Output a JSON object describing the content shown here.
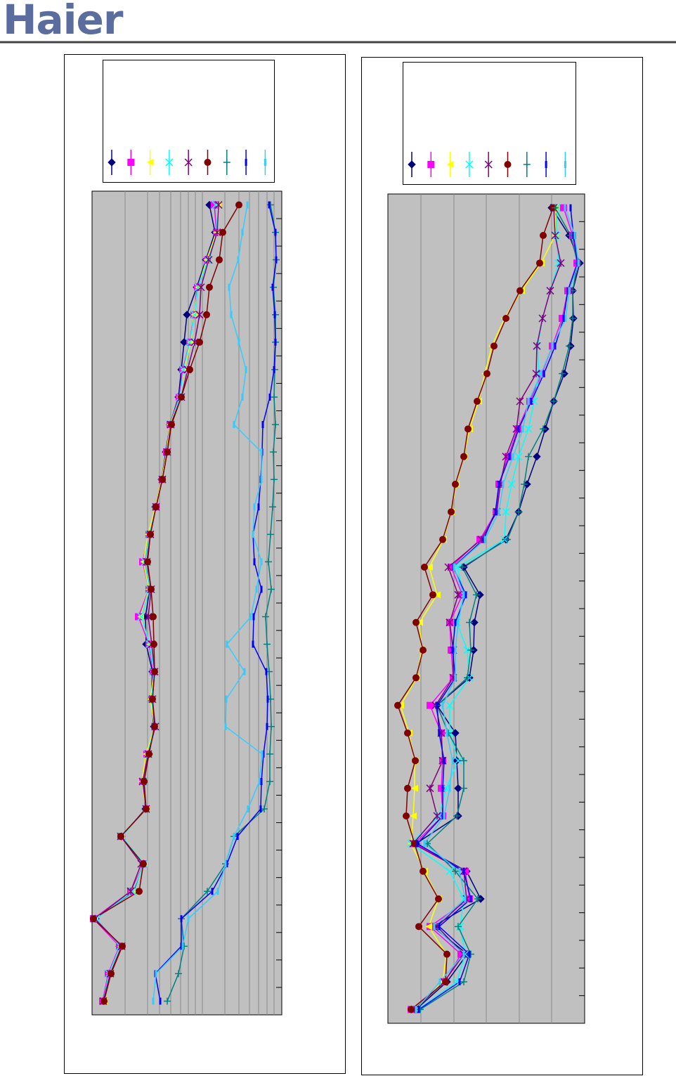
{
  "header": {
    "logo": "Haier"
  },
  "chart_data": [
    {
      "type": "line",
      "orientation": "horizontal",
      "grid": true,
      "categories": [
        null,
        null,
        null,
        null,
        null,
        null,
        null,
        null,
        null,
        null,
        null,
        null,
        null,
        null,
        null,
        null,
        null,
        null,
        null,
        null,
        null,
        null,
        null,
        null,
        null,
        null,
        null,
        null,
        null,
        null
      ],
      "xlim": [
        0,
        270
      ],
      "xticks": [
        47,
        79,
        96,
        112,
        126,
        137,
        147,
        157,
        189,
        209,
        224,
        237,
        249,
        259
      ],
      "series": [
        {
          "color": "#000080",
          "marker": "diamond",
          "values": [
            167,
            175,
            162,
            149,
            135,
            131,
            127,
            123,
            111,
            105,
            99,
            90,
            82,
            75,
            82,
            76,
            77,
            86,
            84,
            88,
            81,
            73,
            76,
            42,
            73,
            59,
            5,
            39,
            24,
            16
          ]
        },
        {
          "color": "#ff00ff",
          "marker": "square",
          "values": [
            174,
            177,
            164,
            150,
            145,
            139,
            129,
            124,
            111,
            106,
            100,
            91,
            81,
            72,
            81,
            66,
            81,
            87,
            85,
            89,
            78,
            72,
            77,
            41,
            74,
            55,
            2,
            39,
            23,
            15
          ]
        },
        {
          "color": "#ffff00",
          "marker": "triangle",
          "values": [
            179,
            177,
            163,
            151,
            145,
            140,
            131,
            125,
            111,
            106,
            99,
            90,
            80,
            73,
            81,
            69,
            82,
            88,
            83,
            89,
            77,
            71,
            77,
            42,
            74,
            57,
            4,
            41,
            25,
            17
          ]
        },
        {
          "color": "#00ffff",
          "marker": "x",
          "values": [
            176,
            178,
            165,
            151,
            146,
            139,
            130,
            125,
            112,
            107,
            100,
            91,
            82,
            75,
            82,
            70,
            82,
            88,
            85,
            89,
            79,
            73,
            77,
            42,
            74,
            58,
            6,
            40,
            24,
            16
          ]
        },
        {
          "color": "#800080",
          "marker": "star",
          "values": [
            180,
            178,
            166,
            155,
            153,
            146,
            136,
            127,
            112,
            107,
            100,
            91,
            83,
            78,
            84,
            80,
            85,
            89,
            86,
            90,
            80,
            72,
            77,
            41,
            70,
            55,
            4,
            42,
            26,
            16
          ]
        },
        {
          "color": "#800000",
          "marker": "circle",
          "values": [
            209,
            186,
            181,
            167,
            163,
            153,
            139,
            127,
            113,
            107,
            100,
            91,
            83,
            79,
            84,
            87,
            88,
            89,
            86,
            89,
            81,
            74,
            77,
            41,
            73,
            67,
            2,
            43,
            27,
            17
          ]
        },
        {
          "color": "#008080",
          "marker": "plus",
          "values": [
            254,
            261,
            262,
            258,
            261,
            261,
            260,
            259,
            261,
            258,
            259,
            257,
            254,
            251,
            255,
            247,
            249,
            252,
            254,
            255,
            253,
            253,
            245,
            202,
            190,
            164,
            127,
            131,
            123,
            107
          ]
        },
        {
          "color": "#0000ff",
          "marker": "bar",
          "values": [
            252,
            261,
            262,
            257,
            260,
            261,
            259,
            253,
            243,
            242,
            240,
            237,
            229,
            231,
            241,
            230,
            229,
            248,
            250,
            249,
            244,
            241,
            240,
            207,
            192,
            171,
            127,
            127,
            90,
            97
          ]
        },
        {
          "color": "#33ccff",
          "marker": "bar",
          "values": [
            221,
            214,
            208,
            195,
            198,
            209,
            219,
            214,
            202,
            241,
            241,
            231,
            229,
            241,
            234,
            226,
            192,
            217,
            191,
            190,
            242,
            238,
            222,
            202,
            190,
            179,
            137,
            129,
            91,
            87
          ]
        }
      ]
    },
    {
      "type": "line",
      "orientation": "horizontal",
      "grid": true,
      "categories": [
        null,
        null,
        null,
        null,
        null,
        null,
        null,
        null,
        null,
        null,
        null,
        null,
        null,
        null,
        null,
        null,
        null,
        null,
        null,
        null,
        null,
        null,
        null,
        null,
        null,
        null,
        null,
        null,
        null,
        null
      ],
      "xlim": [
        0,
        280
      ],
      "xticks": [
        47,
        94,
        140,
        187,
        233
      ],
      "series": [
        {
          "color": "#000080",
          "marker": "diamond",
          "values": [
            233,
            258,
            273,
            263,
            264,
            260,
            251,
            236,
            224,
            212,
            198,
            186,
            168,
            108,
            131,
            123,
            122,
            116,
            70,
            96,
            98,
            100,
            100,
            40,
            112,
            132,
            64,
            113,
            84,
            40
          ]
        },
        {
          "color": "#ff00ff",
          "marker": "square",
          "values": [
            250,
            263,
            269,
            256,
            248,
            234,
            219,
            202,
            185,
            171,
            158,
            154,
            131,
            90,
            106,
            88,
            90,
            93,
            60,
            76,
            78,
            76,
            78,
            38,
            110,
            116,
            60,
            104,
            81,
            33
          ]
        },
        {
          "color": "#ffff00",
          "marker": "triangle",
          "values": [
            238,
            238,
            218,
            190,
            166,
            148,
            138,
            129,
            116,
            108,
            97,
            90,
            79,
            59,
            70,
            45,
            48,
            41,
            18,
            30,
            38,
            38,
            36,
            33,
            52,
            72,
            58,
            83,
            78,
            38
          ]
        },
        {
          "color": "#00ffff",
          "marker": "x",
          "values": [
            240,
            240,
            243,
            231,
            220,
            213,
            215,
            208,
            200,
            186,
            176,
            168,
            166,
            99,
            108,
            98,
            113,
            116,
            88,
            88,
            100,
            83,
            73,
            33,
            88,
            108,
            103,
            110,
            98,
            43
          ]
        },
        {
          "color": "#800080",
          "marker": "star",
          "values": [
            236,
            238,
            246,
            231,
            220,
            212,
            211,
            188,
            183,
            168,
            160,
            155,
            133,
            86,
            100,
            88,
            93,
            93,
            68,
            76,
            78,
            60,
            70,
            36,
            108,
            112,
            70,
            108,
            80,
            38
          ]
        },
        {
          "color": "#800000",
          "marker": "circle",
          "values": [
            235,
            221,
            216,
            188,
            168,
            151,
            141,
            127,
            114,
            108,
            96,
            90,
            78,
            52,
            64,
            40,
            50,
            40,
            14,
            28,
            39,
            28,
            26,
            38,
            50,
            72,
            44,
            84,
            82,
            33
          ]
        },
        {
          "color": "#008080",
          "marker": "plus",
          "values": [
            238,
            260,
            270,
            263,
            263,
            258,
            248,
            236,
            221,
            200,
            194,
            186,
            170,
            106,
            126,
            116,
            118,
            113,
            70,
            86,
            108,
            108,
            98,
            56,
            96,
            128,
            100,
            118,
            108,
            46
          ]
        },
        {
          "color": "#0000ff",
          "marker": "bar",
          "values": [
            260,
            264,
            270,
            256,
            250,
            238,
            222,
            204,
            186,
            173,
            158,
            153,
            136,
            93,
            111,
            96,
            92,
            96,
            70,
            73,
            80,
            78,
            78,
            42,
            108,
            118,
            73,
            116,
            102,
            44
          ]
        },
        {
          "color": "#33ccff",
          "marker": "bar",
          "values": [
            252,
            266,
            271,
            258,
            253,
            234,
            218,
            200,
            192,
            178,
            164,
            158,
            138,
            94,
            108,
            100,
            96,
            96,
            78,
            84,
            92,
            88,
            80,
            52,
            102,
            110,
            66,
            108,
            74,
            40
          ]
        }
      ]
    }
  ]
}
